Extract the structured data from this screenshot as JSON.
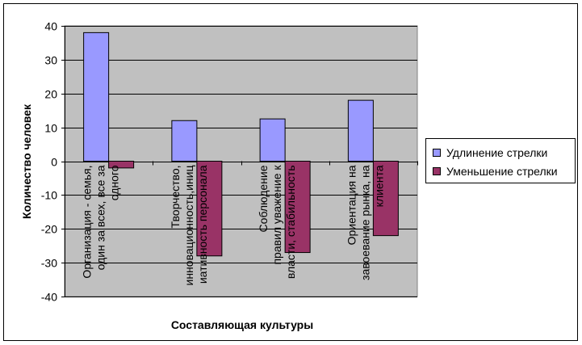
{
  "chart_data": {
    "type": "bar",
    "title": "",
    "xlabel": "Составляющая культуры",
    "ylabel": "Количество человек",
    "ylim": [
      -40,
      40
    ],
    "yticks": [
      40,
      30,
      20,
      10,
      0,
      -10,
      -20,
      -30,
      -40
    ],
    "grid": true,
    "legend_position": "right",
    "categories": [
      "Организация - семья, один за всех, все за одного",
      "Творчество, инновационность инициативность персонала",
      "Соблюдение правил уважение к власти, стабильность",
      "Ориентация на завоевание рынка, на клиента"
    ],
    "category_lines": [
      [
        "Организация - семья,",
        "один за всех, все за",
        "одного"
      ],
      [
        "Творчество,",
        "инновационность,иниц",
        "иативность персонала"
      ],
      [
        "Соблюдение",
        "правил уважение к",
        "власти, стабильность"
      ],
      [
        "Ориентация на",
        "завоевание рынка, на",
        "клиента"
      ]
    ],
    "series": [
      {
        "name": "Удлинение стрелки",
        "color": "#9999ff",
        "values": [
          38,
          12,
          12.5,
          18
        ]
      },
      {
        "name": "Уменьшение стрелки",
        "color": "#993366",
        "values": [
          -2,
          -28,
          -27,
          -22
        ]
      }
    ],
    "colors": {
      "plot_background": "#c0c0c0",
      "gridline": "#000000",
      "frame": "#000000"
    }
  }
}
